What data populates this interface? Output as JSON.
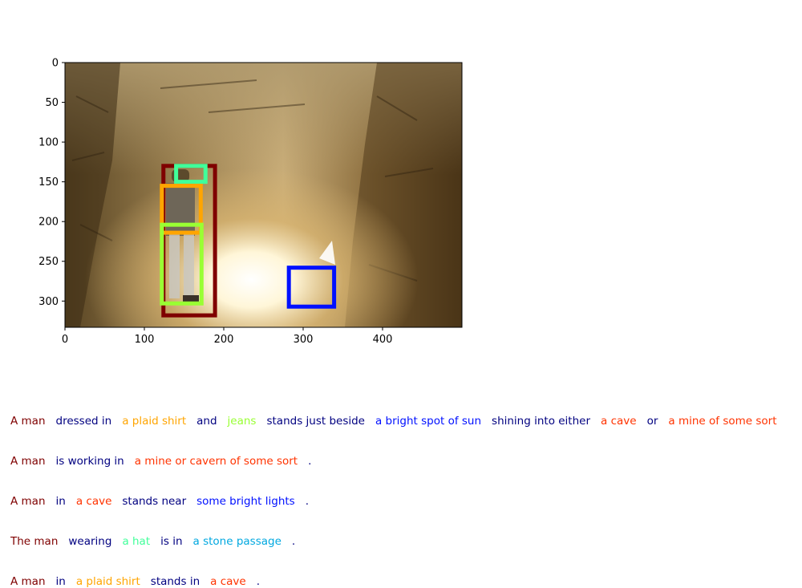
{
  "axes": {
    "x_ticks": [
      "0",
      "100",
      "200",
      "300",
      "400"
    ],
    "y_ticks": [
      "0",
      "50",
      "100",
      "150",
      "200",
      "250",
      "300"
    ]
  },
  "image": {
    "width": 500,
    "height": 333,
    "subject": "man in a plaid shirt standing in a rocky cave passage near bright light"
  },
  "colors": {
    "dark_red": "#7f0000",
    "orange": "#ffa500",
    "yellow_green": "#99ff33",
    "aqua_green": "#40ff9a",
    "blue": "#0010ff",
    "navy": "#000080",
    "red": "#ff3300",
    "sky": "#00a8e0"
  },
  "boxes": [
    {
      "name": "a-man",
      "color": "#7f0000",
      "x0": 124,
      "y0": 130,
      "x1": 189,
      "y1": 318
    },
    {
      "name": "a-hat",
      "color": "#40ff9a",
      "x0": 140,
      "y0": 130,
      "x1": 177,
      "y1": 150
    },
    {
      "name": "a-plaid-shirt",
      "color": "#ffa500",
      "x0": 122,
      "y0": 155,
      "x1": 171,
      "y1": 214
    },
    {
      "name": "jeans",
      "color": "#99ff33",
      "x0": 122,
      "y0": 204,
      "x1": 172,
      "y1": 303
    },
    {
      "name": "bright-spot",
      "color": "#0010ff",
      "x0": 282,
      "y0": 258,
      "x1": 339,
      "y1": 307
    }
  ],
  "captions": [
    [
      {
        "text": "A man",
        "color": "#7f0000"
      },
      {
        "text": "dressed in",
        "color": "#000080"
      },
      {
        "text": "a plaid shirt",
        "color": "#ffa500"
      },
      {
        "text": "and",
        "color": "#000080"
      },
      {
        "text": "jeans",
        "color": "#99ff33"
      },
      {
        "text": "stands just beside",
        "color": "#000080"
      },
      {
        "text": "a bright spot of sun",
        "color": "#0010ff"
      },
      {
        "text": "shining into either",
        "color": "#000080"
      },
      {
        "text": "a cave",
        "color": "#ff3300"
      },
      {
        "text": "or",
        "color": "#000080"
      },
      {
        "text": "a mine of some sort",
        "color": "#ff3300"
      }
    ],
    [
      {
        "text": "A man",
        "color": "#7f0000"
      },
      {
        "text": "is working in",
        "color": "#000080"
      },
      {
        "text": "a mine or cavern of some sort",
        "color": "#ff3300"
      },
      {
        "text": ".",
        "color": "#000080"
      }
    ],
    [
      {
        "text": "A man",
        "color": "#7f0000"
      },
      {
        "text": "in",
        "color": "#000080"
      },
      {
        "text": "a cave",
        "color": "#ff3300"
      },
      {
        "text": "stands near",
        "color": "#000080"
      },
      {
        "text": "some bright lights",
        "color": "#0010ff"
      },
      {
        "text": ".",
        "color": "#000080"
      }
    ],
    [
      {
        "text": "The man",
        "color": "#7f0000"
      },
      {
        "text": "wearing",
        "color": "#000080"
      },
      {
        "text": "a hat",
        "color": "#40ff9a"
      },
      {
        "text": "is in",
        "color": "#000080"
      },
      {
        "text": "a stone passage",
        "color": "#00a8e0"
      },
      {
        "text": ".",
        "color": "#000080"
      }
    ],
    [
      {
        "text": "A man",
        "color": "#7f0000"
      },
      {
        "text": "in",
        "color": "#000080"
      },
      {
        "text": "a plaid shirt",
        "color": "#ffa500"
      },
      {
        "text": "stands in",
        "color": "#000080"
      },
      {
        "text": "a cave",
        "color": "#ff3300"
      },
      {
        "text": ".",
        "color": "#000080"
      }
    ]
  ]
}
